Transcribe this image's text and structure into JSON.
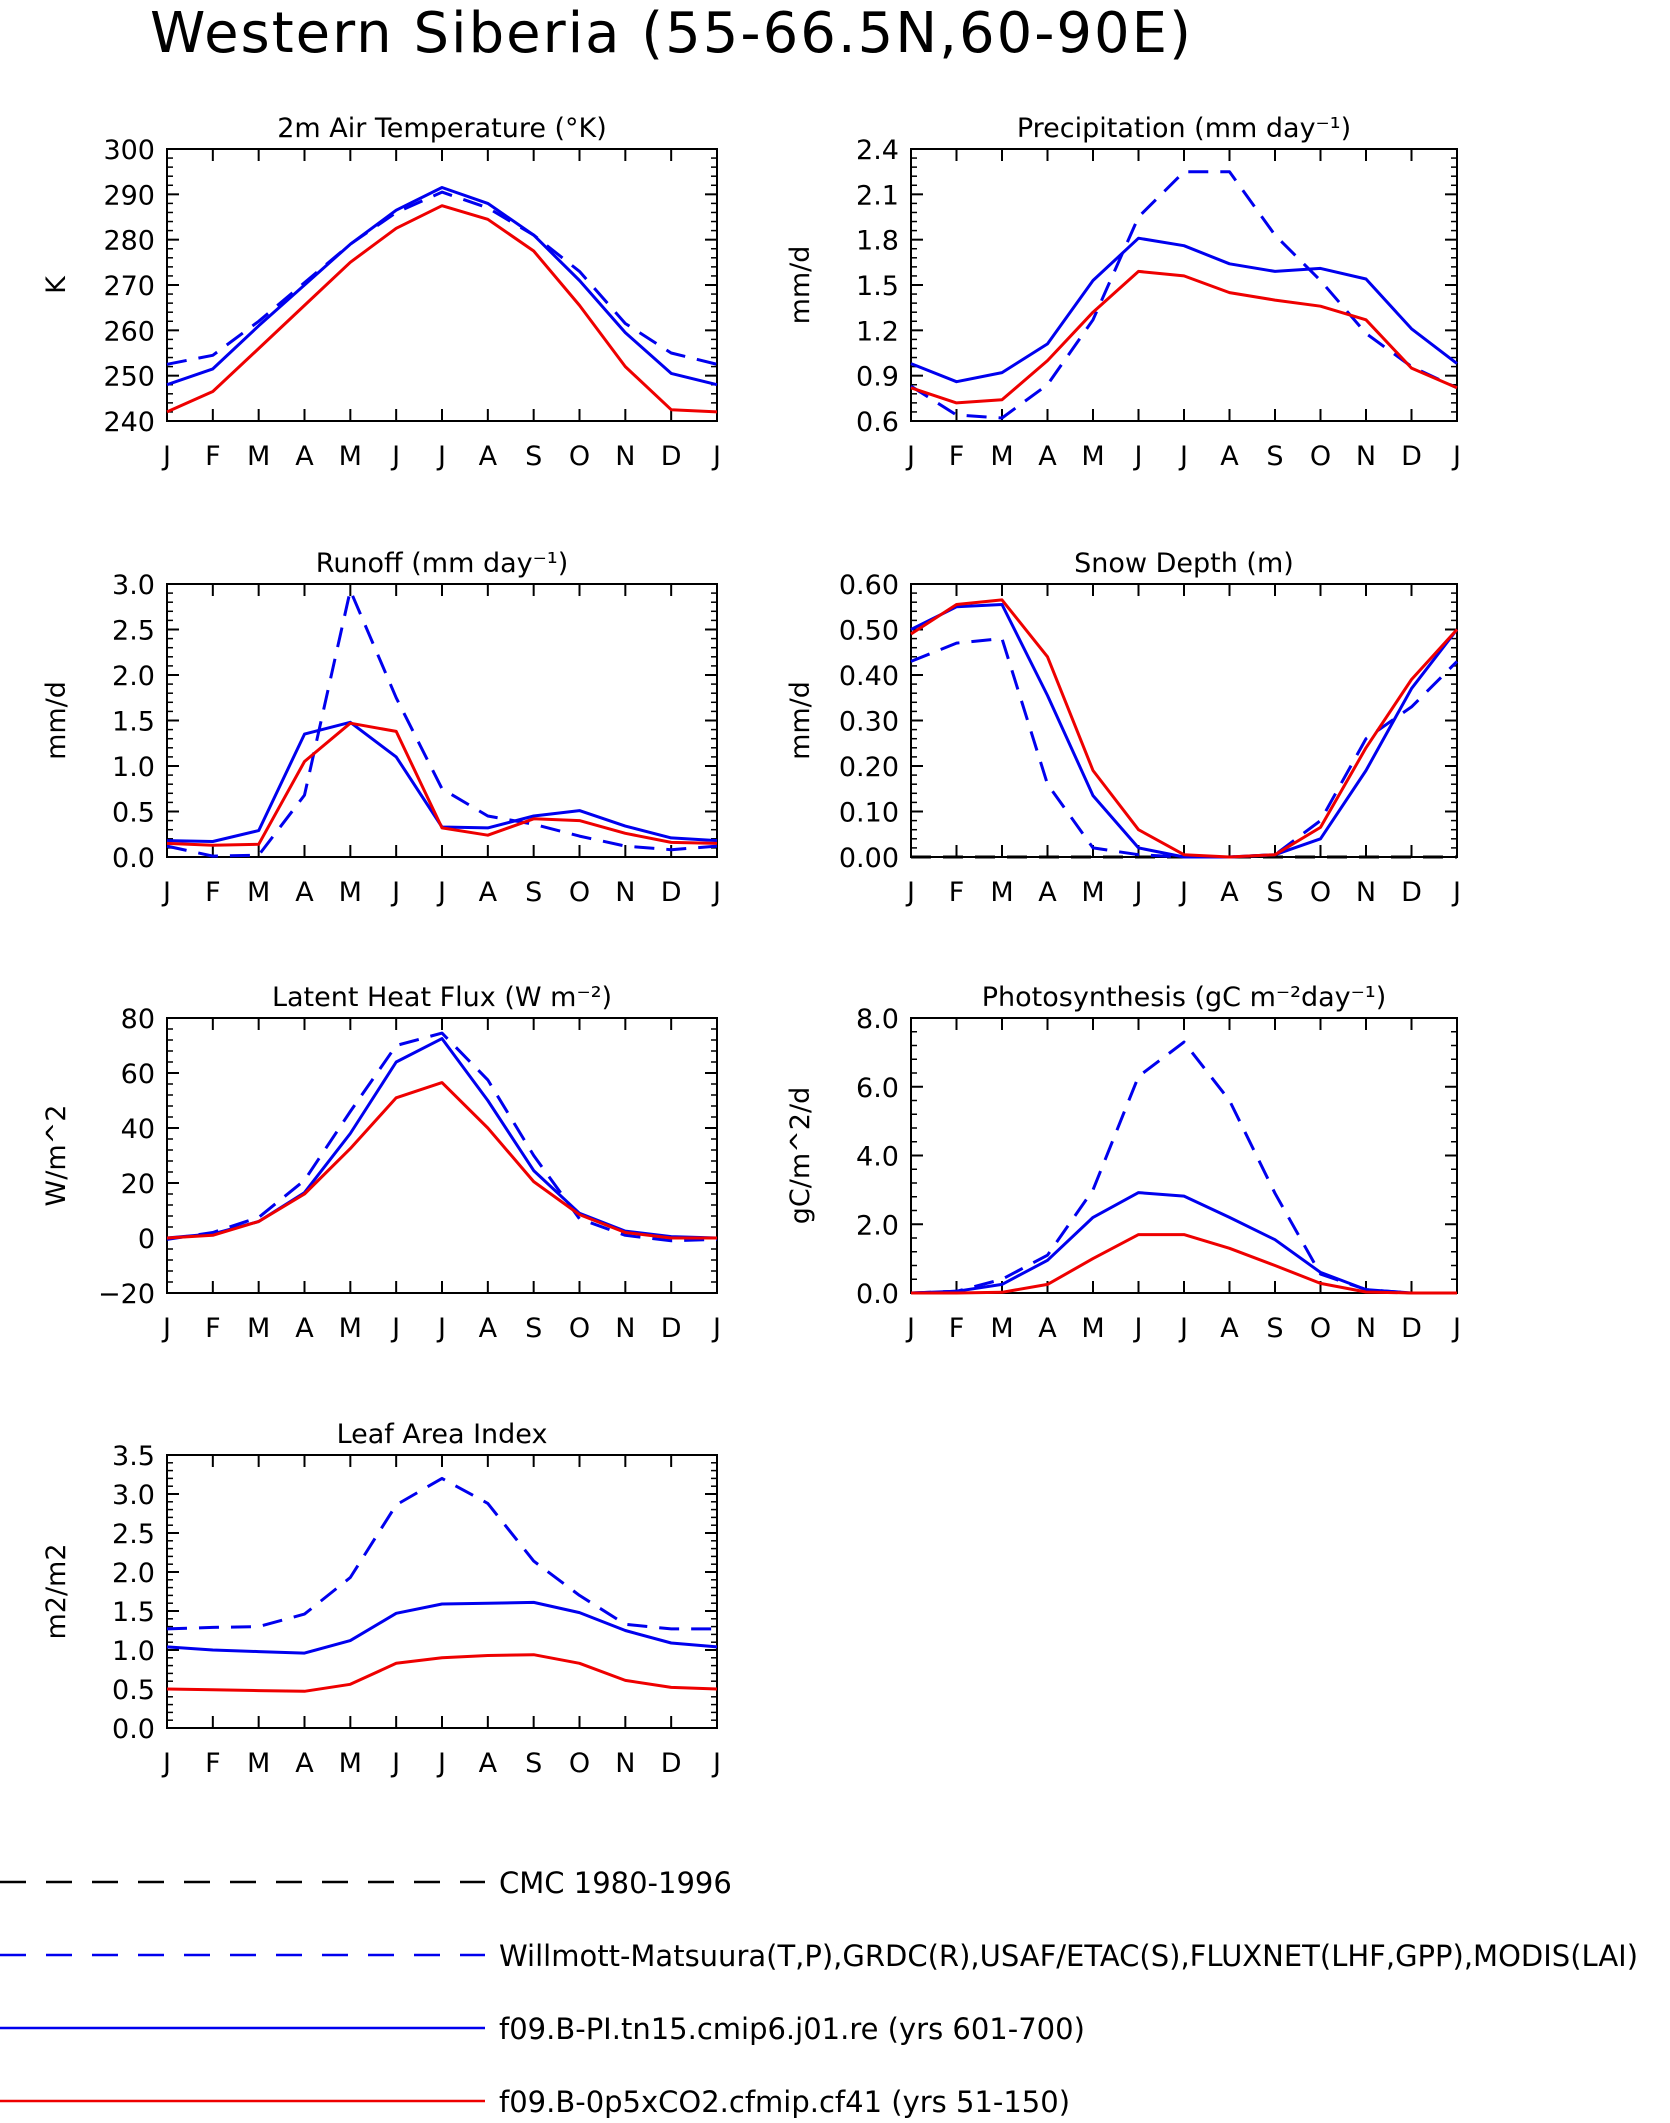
{
  "page_title": "Western Siberia (55-66.5N,60-90E)",
  "months": [
    "J",
    "F",
    "M",
    "A",
    "M",
    "J",
    "J",
    "A",
    "S",
    "O",
    "N",
    "D",
    "J"
  ],
  "colors": {
    "obs": "#0000ee",
    "model1": "#0000ee",
    "model2": "#ee0000",
    "cmc": "#000000"
  },
  "legend": [
    {
      "label": "CMC 1980-1996",
      "color": "#000000",
      "dash": true
    },
    {
      "label": "Willmott-Matsuura(T,P),GRDC(R),USAF/ETAC(S),FLUXNET(LHF,GPP),MODIS(LAI)",
      "color": "#0000ee",
      "dash": true
    },
    {
      "label": "f09.B-PI.tn15.cmip6.j01.re (yrs 601-700)",
      "color": "#0000ee",
      "dash": false
    },
    {
      "label": "f09.B-0p5xCO2.cfmip.cf41 (yrs 51-150)",
      "color": "#ee0000",
      "dash": false
    }
  ],
  "chart_data": [
    {
      "type": "line",
      "title": "2m Air Temperature (°K)",
      "ylabel": "K",
      "ylim": [
        240,
        300
      ],
      "yticks": [
        "240",
        "250",
        "260",
        "270",
        "280",
        "290",
        "300"
      ],
      "series": [
        {
          "name": "Willmott-Matsuura(T,P),GRDC(R),USAF/ETAC(S),FLUXNET(LHF,GPP),MODIS(LAI)",
          "style": "dash",
          "color": "#0000ee",
          "values": [
            252.5,
            254.5,
            262,
            270.5,
            279,
            286,
            290.5,
            287,
            281,
            273,
            261.5,
            255,
            252.5
          ]
        },
        {
          "name": "f09.B-PI.tn15.cmip6.j01.re (yrs 601-700)",
          "style": "solid",
          "color": "#0000ee",
          "values": [
            248,
            251.5,
            261,
            270,
            279,
            286.5,
            291.5,
            288,
            281,
            271,
            259.5,
            250.5,
            248
          ]
        },
        {
          "name": "f09.B-0p5xCO2.cfmip.cf41 (yrs 51-150)",
          "style": "solid",
          "color": "#ee0000",
          "values": [
            242,
            246.5,
            256,
            265.5,
            275,
            282.5,
            287.5,
            284.5,
            277.5,
            265.5,
            252,
            242.5,
            242
          ]
        }
      ]
    },
    {
      "type": "line",
      "title": "Precipitation (mm day⁻¹)",
      "ylabel": "mm/d",
      "ylim": [
        0.6,
        2.4
      ],
      "yticks": [
        "0.6",
        "0.9",
        "1.2",
        "1.5",
        "1.8",
        "2.1",
        "2.4"
      ],
      "series": [
        {
          "name": "Willmott-Matsuura(T,P),GRDC(R),USAF/ETAC(S),FLUXNET(LHF,GPP),MODIS(LAI)",
          "style": "dash",
          "color": "#0000ee",
          "values": [
            0.83,
            0.64,
            0.62,
            0.84,
            1.27,
            1.95,
            2.25,
            2.25,
            1.83,
            1.53,
            1.18,
            0.96,
            0.82
          ]
        },
        {
          "name": "f09.B-PI.tn15.cmip6.j01.re (yrs 601-700)",
          "style": "solid",
          "color": "#0000ee",
          "values": [
            0.98,
            0.86,
            0.92,
            1.11,
            1.53,
            1.81,
            1.76,
            1.64,
            1.59,
            1.61,
            1.54,
            1.21,
            0.98
          ]
        },
        {
          "name": "f09.B-0p5xCO2.cfmip.cf41 (yrs 51-150)",
          "style": "solid",
          "color": "#ee0000",
          "values": [
            0.82,
            0.72,
            0.74,
            1.0,
            1.32,
            1.59,
            1.56,
            1.45,
            1.4,
            1.36,
            1.27,
            0.95,
            0.82
          ]
        }
      ]
    },
    {
      "type": "line",
      "title": "Runoff (mm day⁻¹)",
      "ylabel": "mm/d",
      "ylim": [
        0,
        3.0
      ],
      "yticks": [
        "0.0",
        "0.5",
        "1.0",
        "1.5",
        "2.0",
        "2.5",
        "3.0"
      ],
      "series": [
        {
          "name": "Willmott-Matsuura(T,P),GRDC(R),USAF/ETAC(S),FLUXNET(LHF,GPP),MODIS(LAI)",
          "style": "dash",
          "color": "#0000ee",
          "values": [
            0.12,
            0.01,
            0.02,
            0.68,
            2.93,
            1.75,
            0.75,
            0.45,
            0.36,
            0.23,
            0.12,
            0.08,
            0.12
          ]
        },
        {
          "name": "f09.B-PI.tn15.cmip6.j01.re (yrs 601-700)",
          "style": "solid",
          "color": "#0000ee",
          "values": [
            0.18,
            0.17,
            0.29,
            1.35,
            1.48,
            1.1,
            0.33,
            0.32,
            0.45,
            0.51,
            0.34,
            0.21,
            0.18
          ]
        },
        {
          "name": "f09.B-0p5xCO2.cfmip.cf41 (yrs 51-150)",
          "style": "solid",
          "color": "#ee0000",
          "values": [
            0.15,
            0.13,
            0.14,
            1.05,
            1.47,
            1.38,
            0.32,
            0.24,
            0.42,
            0.4,
            0.26,
            0.16,
            0.15
          ]
        }
      ]
    },
    {
      "type": "line",
      "title": "Snow Depth (m)",
      "ylabel": "mm/d",
      "ylim": [
        0,
        0.6
      ],
      "yticks": [
        "0.00",
        "0.10",
        "0.20",
        "0.30",
        "0.40",
        "0.50",
        "0.60"
      ],
      "series": [
        {
          "name": "CMC 1980-1996",
          "style": "dash",
          "color": "#000000",
          "values": [
            0,
            0,
            0,
            0,
            0,
            0,
            0,
            0,
            0,
            0,
            0,
            0,
            0
          ]
        },
        {
          "name": "Willmott-Matsuura(T,P),GRDC(R),USAF/ETAC(S),FLUXNET(LHF,GPP),MODIS(LAI)",
          "style": "dash",
          "color": "#0000ee",
          "values": [
            0.43,
            0.47,
            0.48,
            0.16,
            0.02,
            0.005,
            0,
            0,
            0.005,
            0.08,
            0.26,
            0.33,
            0.43
          ]
        },
        {
          "name": "f09.B-PI.tn15.cmip6.j01.re (yrs 601-700)",
          "style": "solid",
          "color": "#0000ee",
          "values": [
            0.5,
            0.55,
            0.555,
            0.355,
            0.135,
            0.02,
            0.0,
            0.0,
            0.005,
            0.04,
            0.19,
            0.37,
            0.5
          ]
        },
        {
          "name": "f09.B-0p5xCO2.cfmip.cf41 (yrs 51-150)",
          "style": "solid",
          "color": "#ee0000",
          "values": [
            0.49,
            0.555,
            0.565,
            0.44,
            0.19,
            0.06,
            0.005,
            0.0,
            0.005,
            0.065,
            0.24,
            0.39,
            0.5
          ]
        }
      ]
    },
    {
      "type": "line",
      "title": "Latent Heat Flux (W m⁻²)",
      "ylabel": "W/m^2",
      "ylim": [
        -20,
        80
      ],
      "yticks": [
        "−20",
        "0",
        "20",
        "40",
        "60",
        "80"
      ],
      "series": [
        {
          "name": "Willmott-Matsuura(T,P),GRDC(R),USAF/ETAC(S),FLUXNET(LHF,GPP),MODIS(LAI)",
          "style": "dash",
          "color": "#0000ee",
          "values": [
            -0.5,
            2,
            7.5,
            21,
            46,
            70,
            74.5,
            57.5,
            30,
            7,
            1,
            -1,
            -0.5
          ]
        },
        {
          "name": "f09.B-PI.tn15.cmip6.j01.re (yrs 601-700)",
          "style": "solid",
          "color": "#0000ee",
          "values": [
            0,
            1.5,
            6,
            16.5,
            38,
            64,
            72.5,
            50,
            24.5,
            9,
            2.5,
            0.5,
            0
          ]
        },
        {
          "name": "f09.B-0p5xCO2.cfmip.cf41 (yrs 51-150)",
          "style": "solid",
          "color": "#ee0000",
          "values": [
            0,
            1,
            6,
            16,
            32.5,
            51,
            56.5,
            40,
            20.5,
            8.5,
            2,
            0,
            0
          ]
        }
      ]
    },
    {
      "type": "line",
      "title": "Photosynthesis (gC m⁻²day⁻¹)",
      "ylabel": "gC/m^2/d",
      "ylim": [
        0,
        8
      ],
      "yticks": [
        "0.0",
        "2.0",
        "4.0",
        "6.0",
        "8.0"
      ],
      "series": [
        {
          "name": "Willmott-Matsuura(T,P),GRDC(R),USAF/ETAC(S),FLUXNET(LHF,GPP),MODIS(LAI)",
          "style": "dash",
          "color": "#0000ee",
          "values": [
            0,
            0.05,
            0.4,
            1.1,
            3.0,
            6.3,
            7.3,
            5.6,
            2.9,
            0.55,
            0.1,
            0,
            0
          ]
        },
        {
          "name": "f09.B-PI.tn15.cmip6.j01.re (yrs 601-700)",
          "style": "solid",
          "color": "#0000ee",
          "values": [
            0,
            0.05,
            0.25,
            0.95,
            2.2,
            2.92,
            2.82,
            2.2,
            1.55,
            0.6,
            0.1,
            0,
            0
          ]
        },
        {
          "name": "f09.B-0p5xCO2.cfmip.cf41 (yrs 51-150)",
          "style": "solid",
          "color": "#ee0000",
          "values": [
            0,
            0,
            0.02,
            0.25,
            1.0,
            1.7,
            1.7,
            1.3,
            0.8,
            0.28,
            0.03,
            0,
            0
          ]
        }
      ]
    },
    {
      "type": "line",
      "title": "Leaf Area Index",
      "ylabel": "m2/m2",
      "ylim": [
        0,
        3.5
      ],
      "yticks": [
        "0.0",
        "0.5",
        "1.0",
        "1.5",
        "2.0",
        "2.5",
        "3.0",
        "3.5"
      ],
      "series": [
        {
          "name": "Willmott-Matsuura(T,P),GRDC(R),USAF/ETAC(S),FLUXNET(LHF,GPP),MODIS(LAI)",
          "style": "dash",
          "color": "#0000ee",
          "values": [
            1.27,
            1.29,
            1.3,
            1.46,
            1.93,
            2.86,
            3.2,
            2.88,
            2.14,
            1.7,
            1.33,
            1.27,
            1.27
          ]
        },
        {
          "name": "f09.B-PI.tn15.cmip6.j01.re (yrs 601-700)",
          "style": "solid",
          "color": "#0000ee",
          "values": [
            1.04,
            1.0,
            0.98,
            0.96,
            1.12,
            1.47,
            1.59,
            1.6,
            1.61,
            1.48,
            1.25,
            1.09,
            1.04
          ]
        },
        {
          "name": "f09.B-0p5xCO2.cfmip.cf41 (yrs 51-150)",
          "style": "solid",
          "color": "#ee0000",
          "values": [
            0.5,
            0.49,
            0.48,
            0.47,
            0.56,
            0.83,
            0.9,
            0.93,
            0.94,
            0.83,
            0.61,
            0.52,
            0.5
          ]
        }
      ]
    }
  ]
}
